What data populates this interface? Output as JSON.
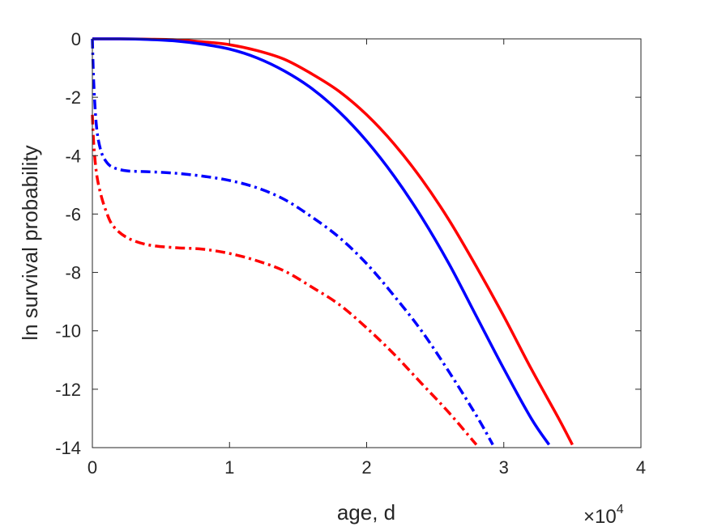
{
  "chart_data": {
    "type": "line",
    "title": "",
    "xlabel": "age, d",
    "ylabel": "ln survival probability",
    "x_exponent_base": "10",
    "x_exponent_power": "4",
    "xlim": [
      0,
      40000
    ],
    "ylim": [
      -14,
      0
    ],
    "xticks": [
      0,
      10000,
      20000,
      30000,
      40000
    ],
    "xtick_labels": [
      "0",
      "1",
      "2",
      "3",
      "4"
    ],
    "yticks": [
      0,
      -2,
      -4,
      -6,
      -8,
      -10,
      -12,
      -14
    ],
    "ytick_labels": [
      "0",
      "-2",
      "-4",
      "-6",
      "-8",
      "-10",
      "-12",
      "-14"
    ],
    "grid": false,
    "legend": "none",
    "series": [
      {
        "color": "#ff0000",
        "dash": "solid",
        "x": [
          0,
          2000,
          4000,
          6000,
          8000,
          10000,
          12000,
          14000,
          16000,
          18000,
          20000,
          22000,
          24000,
          26000,
          28000,
          30000,
          32000,
          34000,
          35000
        ],
        "y": [
          0,
          0,
          -0.01,
          -0.03,
          -0.1,
          -0.2,
          -0.4,
          -0.7,
          -1.2,
          -1.8,
          -2.6,
          -3.6,
          -4.8,
          -6.2,
          -7.8,
          -9.5,
          -11.3,
          -13.0,
          -13.9
        ]
      },
      {
        "color": "#0000ff",
        "dash": "solid",
        "x": [
          0,
          2000,
          4000,
          6000,
          8000,
          10000,
          12000,
          14000,
          16000,
          18000,
          20000,
          22000,
          24000,
          26000,
          28000,
          30000,
          32000,
          33300
        ],
        "y": [
          0,
          0,
          -0.02,
          -0.07,
          -0.18,
          -0.35,
          -0.65,
          -1.1,
          -1.7,
          -2.5,
          -3.5,
          -4.7,
          -6.1,
          -7.7,
          -9.5,
          -11.3,
          -13.0,
          -13.9
        ]
      },
      {
        "color": "#0000ff",
        "dash": "dashdot",
        "x": [
          0,
          100,
          300,
          600,
          1000,
          1500,
          2500,
          4000,
          6000,
          8000,
          10000,
          12000,
          14000,
          16000,
          18000,
          20000,
          22000,
          24000,
          26000,
          28000,
          29200
        ],
        "y": [
          0,
          -1.5,
          -3.0,
          -3.8,
          -4.2,
          -4.4,
          -4.52,
          -4.55,
          -4.6,
          -4.7,
          -4.85,
          -5.1,
          -5.5,
          -6.1,
          -6.8,
          -7.7,
          -8.8,
          -10.0,
          -11.4,
          -12.9,
          -13.9
        ]
      },
      {
        "color": "#ff0000",
        "dash": "dashdot",
        "x": [
          0,
          100,
          300,
          600,
          1000,
          1500,
          2500,
          4000,
          6000,
          8000,
          10000,
          12000,
          14000,
          16000,
          18000,
          20000,
          22000,
          24000,
          26000,
          28000
        ],
        "y": [
          -2.6,
          -3.6,
          -4.6,
          -5.3,
          -5.9,
          -6.4,
          -6.8,
          -7.05,
          -7.15,
          -7.2,
          -7.35,
          -7.6,
          -7.95,
          -8.5,
          -9.1,
          -9.9,
          -10.8,
          -11.8,
          -12.8,
          -13.9
        ]
      }
    ]
  }
}
